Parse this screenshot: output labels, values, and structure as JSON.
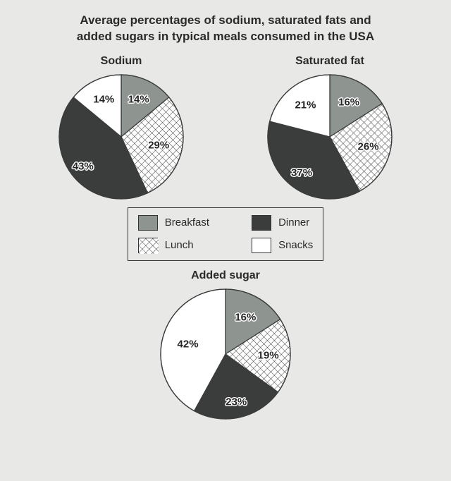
{
  "title_line1": "Average percentages of sodium, saturated fats and",
  "title_line2": "added sugars in typical meals consumed in the USA",
  "colors": {
    "breakfast": "#8e9490",
    "dinner": "#3a3d3b",
    "snacks": "#ffffff",
    "background": "#e8e8e6",
    "stroke": "#3a3d3b"
  },
  "hatch": {
    "angle": 45,
    "spacing": 7,
    "stroke": "#4a4a4a",
    "bg": "#ffffff"
  },
  "pie_defaults": {
    "radius": 88,
    "start_angle_deg": -90,
    "direction": "clockwise",
    "stroke_width": 1.3,
    "label_font_size": 15,
    "label_font_weight": "bold",
    "slice_order": [
      "breakfast",
      "lunch",
      "dinner",
      "snacks"
    ]
  },
  "charts": [
    {
      "id": "sodium",
      "title": "Sodium",
      "radius": 88,
      "slices": {
        "breakfast": {
          "value": 14,
          "label": "14%",
          "label_r": 0.66
        },
        "lunch": {
          "value": 29,
          "label": "29%",
          "label_r": 0.62
        },
        "dinner": {
          "value": 43,
          "label": "43%",
          "label_r": 0.78
        },
        "snacks": {
          "value": 14,
          "label": "14%",
          "label_r": 0.66
        }
      }
    },
    {
      "id": "satfat",
      "title": "Saturated fat",
      "radius": 88,
      "slices": {
        "breakfast": {
          "value": 16,
          "label": "16%",
          "label_r": 0.64
        },
        "lunch": {
          "value": 26,
          "label": "26%",
          "label_r": 0.64
        },
        "dinner": {
          "value": 37,
          "label": "37%",
          "label_r": 0.74
        },
        "snacks": {
          "value": 21,
          "label": "21%",
          "label_r": 0.64
        }
      }
    },
    {
      "id": "sugar",
      "title": "Added sugar",
      "radius": 92,
      "slices": {
        "breakfast": {
          "value": 16,
          "label": "16%",
          "label_r": 0.64
        },
        "lunch": {
          "value": 19,
          "label": "19%",
          "label_r": 0.66
        },
        "dinner": {
          "value": 23,
          "label": "23%",
          "label_r": 0.76
        },
        "snacks": {
          "value": 42,
          "label": "42%",
          "label_r": 0.6
        }
      }
    }
  ],
  "legend": {
    "items": [
      {
        "key": "breakfast",
        "label": "Breakfast"
      },
      {
        "key": "dinner",
        "label": "Dinner"
      },
      {
        "key": "lunch",
        "label": "Lunch"
      },
      {
        "key": "snacks",
        "label": "Snacks"
      }
    ]
  }
}
